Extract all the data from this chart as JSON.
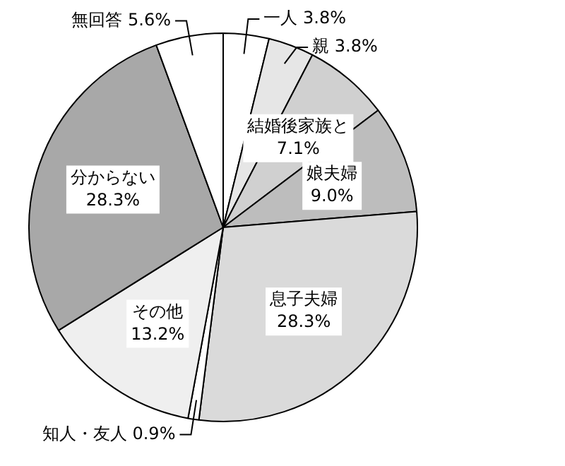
{
  "chart_data": {
    "type": "pie",
    "categories": [
      "一人",
      "親",
      "結婚後家族と",
      "娘夫婦",
      "息子夫婦",
      "知人・友人",
      "その他",
      "分からない",
      "無回答"
    ],
    "values": [
      3.8,
      3.8,
      7.1,
      9.0,
      28.3,
      0.9,
      13.2,
      28.3,
      5.6
    ],
    "value_labels": [
      "3.8%",
      "3.8%",
      "7.1%",
      "9.0%",
      "28.3%",
      "0.9%",
      "13.2%",
      "28.3%",
      "5.6%"
    ],
    "colors": [
      "#ffffff",
      "#e6e6e6",
      "#d0d0d0",
      "#bdbdbd",
      "#dadada",
      "#ffffff",
      "#efefef",
      "#a8a8a8",
      "#ffffff"
    ]
  }
}
